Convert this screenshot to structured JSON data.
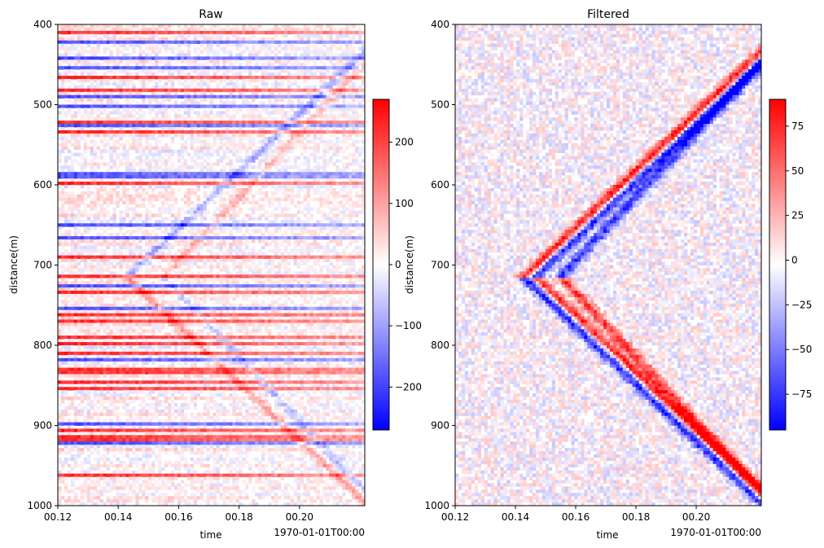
{
  "chart_data": [
    {
      "type": "heatmap",
      "title": "Raw",
      "xlabel": "time",
      "ylabel": "distance(m)",
      "x_offset_label": "1970-01-01T00:00",
      "xticks": [
        "00.12",
        "00.14",
        "00.16",
        "00.18",
        "00.20"
      ],
      "xtick_values": [
        0.12,
        0.14,
        0.16,
        0.18,
        0.2
      ],
      "xlim": [
        0.12,
        0.2216
      ],
      "yticks": [
        "400",
        "500",
        "600",
        "700",
        "800",
        "900",
        "1000"
      ],
      "ytick_values": [
        400,
        500,
        600,
        700,
        800,
        900,
        1000
      ],
      "ylim": [
        1000,
        400
      ],
      "colormap": "bwr",
      "colorbar": {
        "ticks": [
          "200",
          "100",
          "0",
          "−100",
          "−200"
        ],
        "tick_values": [
          200,
          100,
          0,
          -100,
          -200
        ],
        "range": [
          -270,
          270
        ]
      }
    },
    {
      "type": "heatmap",
      "title": "Filtered",
      "xlabel": "time",
      "ylabel": "distance(m)",
      "x_offset_label": "1970-01-01T00:00",
      "xticks": [
        "00.12",
        "00.14",
        "00.16",
        "00.18",
        "00.20"
      ],
      "xtick_values": [
        0.12,
        0.14,
        0.16,
        0.18,
        0.2
      ],
      "xlim": [
        0.12,
        0.2216
      ],
      "yticks": [
        "400",
        "500",
        "600",
        "700",
        "800",
        "900",
        "1000"
      ],
      "ytick_values": [
        400,
        500,
        600,
        700,
        800,
        900,
        1000
      ],
      "ylim": [
        1000,
        400
      ],
      "colormap": "bwr",
      "colorbar": {
        "ticks": [
          "75",
          "50",
          "25",
          "0",
          "−25",
          "−50",
          "−75"
        ],
        "tick_values": [
          75,
          50,
          25,
          0,
          -25,
          -50,
          -75
        ],
        "range": [
          -95,
          90
        ]
      }
    }
  ]
}
